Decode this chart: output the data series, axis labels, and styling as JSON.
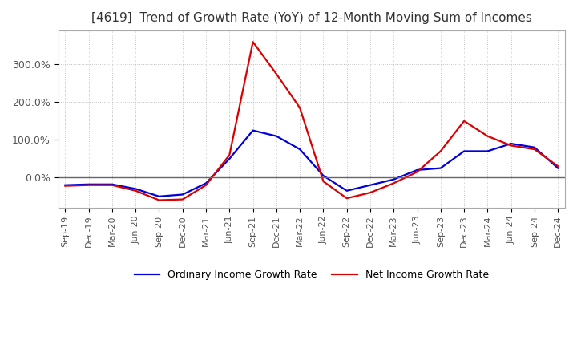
{
  "title": "[4619]  Trend of Growth Rate (YoY) of 12-Month Moving Sum of Incomes",
  "title_fontsize": 11,
  "background_color": "#ffffff",
  "grid_color": "#bbbbbb",
  "ylim": [
    -80,
    390
  ],
  "yticks": [
    0.0,
    100.0,
    200.0,
    300.0
  ],
  "ytick_labels": [
    "0.0%",
    "100.0%",
    "200.0%",
    "300.0%"
  ],
  "xtick_labels": [
    "Sep-19",
    "Dec-19",
    "Mar-20",
    "Jun-20",
    "Sep-20",
    "Dec-20",
    "Mar-21",
    "Jun-21",
    "Sep-21",
    "Dec-21",
    "Mar-22",
    "Jun-22",
    "Sep-22",
    "Dec-22",
    "Mar-23",
    "Jun-23",
    "Sep-23",
    "Dec-23",
    "Mar-24",
    "Jun-24",
    "Sep-24",
    "Dec-24"
  ],
  "ordinary_income": [
    -20,
    -18,
    -18,
    -30,
    -50,
    -45,
    -15,
    50,
    125,
    110,
    75,
    5,
    -35,
    -20,
    -5,
    20,
    25,
    70,
    70,
    90,
    80,
    25
  ],
  "net_income": [
    -22,
    -20,
    -20,
    -35,
    -60,
    -58,
    -20,
    60,
    360,
    275,
    185,
    -10,
    -55,
    -40,
    -15,
    15,
    70,
    150,
    110,
    85,
    75,
    30
  ],
  "ordinary_color": "#0000dd",
  "net_color": "#dd0000",
  "legend_ordinary": "Ordinary Income Growth Rate",
  "legend_net": "Net Income Growth Rate"
}
